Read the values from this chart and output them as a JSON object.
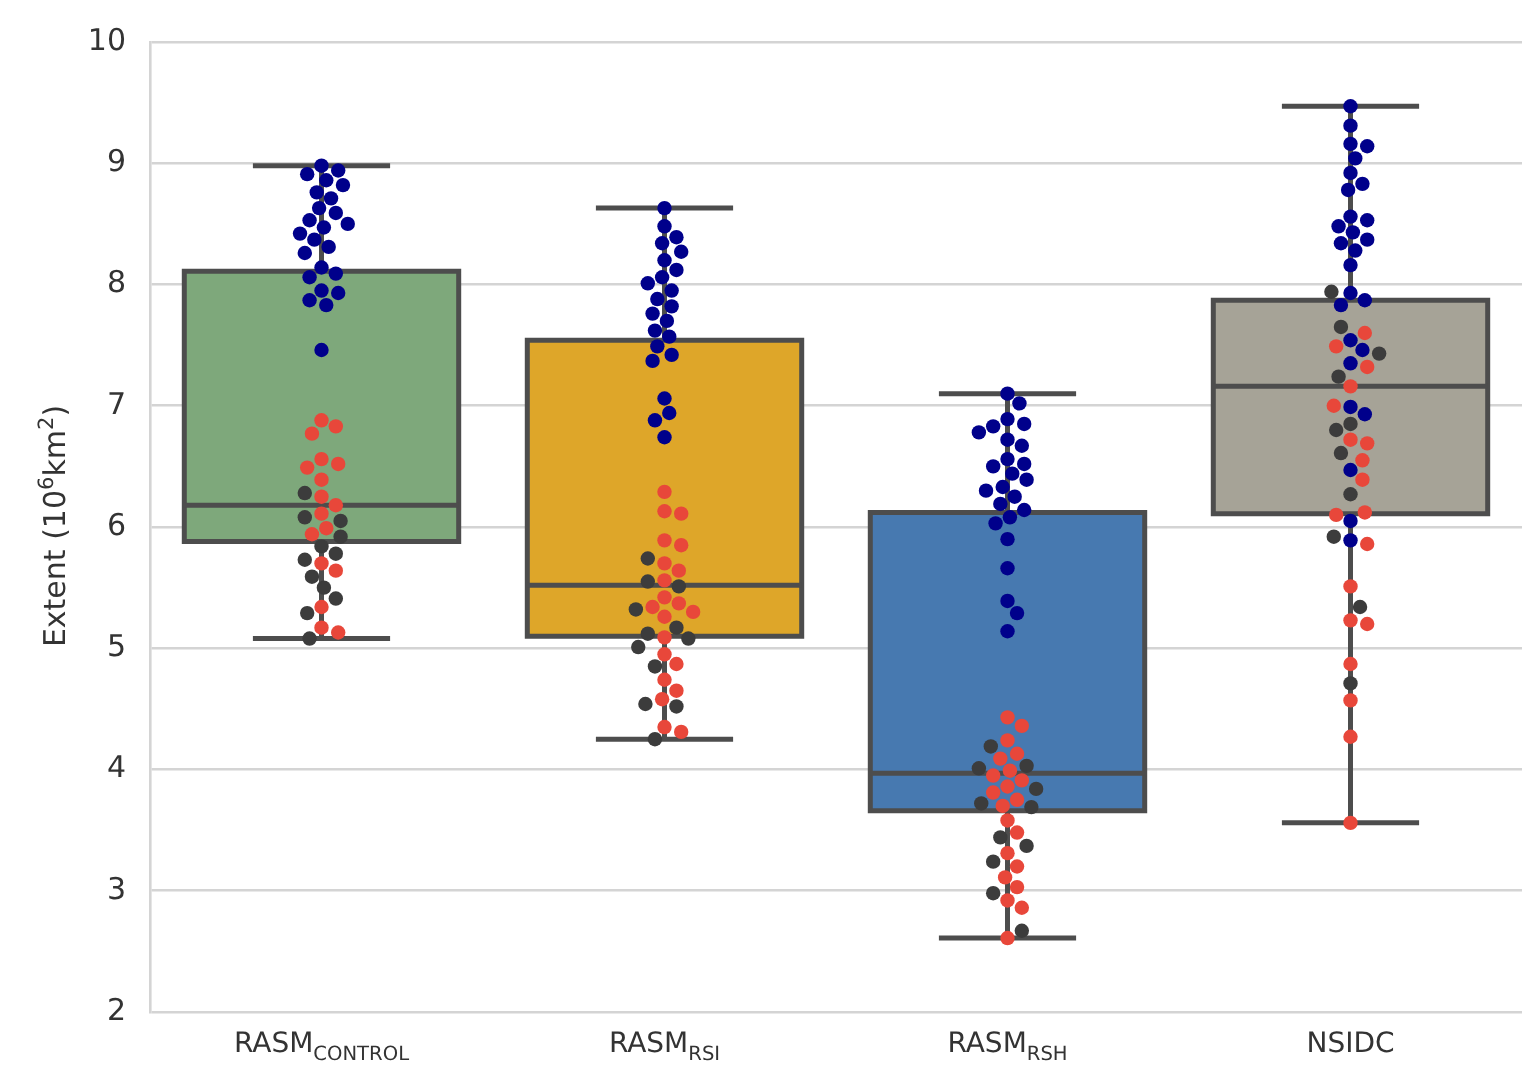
{
  "chart_data": {
    "type": "box",
    "ylabel": "Extent (10$^{6}$km$^{2}$)",
    "categories": [
      "RASM$_{CONTROL}$",
      "RASM$_{RSI}$",
      "RASM$_{RSH}$",
      "NSIDC"
    ],
    "colors": [
      "#7ea87b",
      "#dea629",
      "#4779b0",
      "#a6a397"
    ],
    "boxes": [
      {
        "low": 5.08,
        "q1": 5.88,
        "median": 6.18,
        "q3": 8.11,
        "high": 8.98
      },
      {
        "low": 4.25,
        "q1": 5.1,
        "median": 5.52,
        "q3": 7.54,
        "high": 8.63
      },
      {
        "low": 2.61,
        "q1": 3.66,
        "median": 3.97,
        "q3": 6.12,
        "high": 7.1
      },
      {
        "low": 3.56,
        "q1": 6.11,
        "median": 7.16,
        "q3": 7.87,
        "high": 9.47
      }
    ],
    "series": [
      {
        "type": "scatter",
        "color": "#00008b",
        "x": [
          "RASM$_{CONTROL}$",
          "RASM$_{CONTROL}$",
          "RASM$_{CONTROL}$",
          "RASM$_{CONTROL}$",
          "RASM$_{CONTROL}$",
          "RASM$_{CONTROL}$",
          "RASM$_{CONTROL}$",
          "RASM$_{CONTROL}$",
          "RASM$_{CONTROL}$",
          "RASM$_{CONTROL}$",
          "RASM$_{CONTROL}$",
          "RASM$_{CONTROL}$",
          "RASM$_{CONTROL}$",
          "RASM$_{CONTROL}$",
          "RASM$_{CONTROL}$",
          "RASM$_{CONTROL}$",
          "RASM$_{CONTROL}$",
          "RASM$_{CONTROL}$",
          "RASM$_{CONTROL}$",
          "RASM$_{CONTROL}$",
          "RASM$_{CONTROL}$",
          "RASM$_{CONTROL}$",
          "RASM$_{CONTROL}$",
          "RASM$_{CONTROL}$",
          "RASM$_{RSI}$",
          "RASM$_{RSI}$",
          "RASM$_{RSI}$",
          "RASM$_{RSI}$",
          "RASM$_{RSI}$",
          "RASM$_{RSI}$",
          "RASM$_{RSI}$",
          "RASM$_{RSI}$",
          "RASM$_{RSI}$",
          "RASM$_{RSI}$",
          "RASM$_{RSI}$",
          "RASM$_{RSI}$",
          "RASM$_{RSI}$",
          "RASM$_{RSI}$",
          "RASM$_{RSI}$",
          "RASM$_{RSI}$",
          "RASM$_{RSI}$",
          "RASM$_{RSI}$",
          "RASM$_{RSI}$",
          "RASM$_{RSI}$",
          "RASM$_{RSI}$",
          "RASM$_{RSI}$",
          "RASM$_{RSI}$",
          "RASM$_{RSH}$",
          "RASM$_{RSH}$",
          "RASM$_{RSH}$",
          "RASM$_{RSH}$",
          "RASM$_{RSH}$",
          "RASM$_{RSH}$",
          "RASM$_{RSH}$",
          "RASM$_{RSH}$",
          "RASM$_{RSH}$",
          "RASM$_{RSH}$",
          "RASM$_{RSH}$",
          "RASM$_{RSH}$",
          "RASM$_{RSH}$",
          "RASM$_{RSH}$",
          "RASM$_{RSH}$",
          "RASM$_{RSH}$",
          "RASM$_{RSH}$",
          "RASM$_{RSH}$",
          "RASM$_{RSH}$",
          "RASM$_{RSH}$",
          "RASM$_{RSH}$",
          "RASM$_{RSH}$",
          "RASM$_{RSH}$",
          "RASM$_{RSH}$",
          "RASM$_{RSH}$",
          "NSIDC",
          "NSIDC",
          "NSIDC",
          "NSIDC",
          "NSIDC",
          "NSIDC",
          "NSIDC",
          "NSIDC",
          "NSIDC",
          "NSIDC",
          "NSIDC",
          "NSIDC",
          "NSIDC",
          "NSIDC",
          "NSIDC",
          "NSIDC",
          "NSIDC",
          "NSIDC",
          "NSIDC",
          "NSIDC",
          "NSIDC",
          "NSIDC",
          "NSIDC",
          "NSIDC",
          "NSIDC",
          "NSIDC",
          "NSIDC"
        ],
        "values": [
          8.98,
          8.94,
          8.91,
          8.86,
          8.82,
          8.76,
          8.71,
          8.63,
          8.59,
          8.53,
          8.5,
          8.47,
          8.42,
          8.37,
          8.31,
          8.26,
          8.14,
          8.09,
          8.06,
          7.95,
          7.93,
          7.87,
          7.83,
          7.46,
          8.63,
          8.48,
          8.39,
          8.34,
          8.27,
          8.2,
          8.12,
          8.06,
          8.01,
          7.95,
          7.88,
          7.82,
          7.76,
          7.7,
          7.62,
          7.57,
          7.49,
          7.42,
          7.37,
          7.06,
          6.94,
          6.88,
          6.74,
          7.1,
          7.02,
          6.89,
          6.85,
          6.83,
          6.78,
          6.72,
          6.67,
          6.56,
          6.52,
          6.5,
          6.44,
          6.39,
          6.33,
          6.3,
          6.25,
          6.19,
          6.14,
          6.08,
          6.03,
          5.9,
          5.66,
          5.39,
          5.29,
          5.14,
          9.47,
          9.31,
          9.16,
          9.14,
          9.04,
          8.92,
          8.83,
          8.78,
          8.56,
          8.53,
          8.48,
          8.43,
          8.37,
          8.34,
          8.28,
          8.16,
          7.93,
          7.87,
          7.83,
          7.54,
          7.46,
          7.35,
          6.99,
          6.93,
          6.47,
          6.05,
          5.89
        ]
      },
      {
        "type": "scatter",
        "color": "#e8473a",
        "x": [
          "RASM$_{CONTROL}$",
          "RASM$_{CONTROL}$",
          "RASM$_{CONTROL}$",
          "RASM$_{CONTROL}$",
          "RASM$_{CONTROL}$",
          "RASM$_{CONTROL}$",
          "RASM$_{CONTROL}$",
          "RASM$_{CONTROL}$",
          "RASM$_{CONTROL}$",
          "RASM$_{CONTROL}$",
          "RASM$_{CONTROL}$",
          "RASM$_{CONTROL}$",
          "RASM$_{CONTROL}$",
          "RASM$_{CONTROL}$",
          "RASM$_{CONTROL}$",
          "RASM$_{CONTROL}$",
          "RASM$_{CONTROL}$",
          "RASM$_{RSI}$",
          "RASM$_{RSI}$",
          "RASM$_{RSI}$",
          "RASM$_{RSI}$",
          "RASM$_{RSI}$",
          "RASM$_{RSI}$",
          "RASM$_{RSI}$",
          "RASM$_{RSI}$",
          "RASM$_{RSI}$",
          "RASM$_{RSI}$",
          "RASM$_{RSI}$",
          "RASM$_{RSI}$",
          "RASM$_{RSI}$",
          "RASM$_{RSI}$",
          "RASM$_{RSI}$",
          "RASM$_{RSI}$",
          "RASM$_{RSI}$",
          "RASM$_{RSI}$",
          "RASM$_{RSI}$",
          "RASM$_{RSI}$",
          "RASM$_{RSI}$",
          "RASM$_{RSH}$",
          "RASM$_{RSH}$",
          "RASM$_{RSH}$",
          "RASM$_{RSH}$",
          "RASM$_{RSH}$",
          "RASM$_{RSH}$",
          "RASM$_{RSH}$",
          "RASM$_{RSH}$",
          "RASM$_{RSH}$",
          "RASM$_{RSH}$",
          "RASM$_{RSH}$",
          "RASM$_{RSH}$",
          "RASM$_{RSH}$",
          "RASM$_{RSH}$",
          "RASM$_{RSH}$",
          "RASM$_{RSH}$",
          "RASM$_{RSH}$",
          "RASM$_{RSH}$",
          "RASM$_{RSH}$",
          "RASM$_{RSH}$",
          "RASM$_{RSH}$",
          "NSIDC",
          "NSIDC",
          "NSIDC",
          "NSIDC",
          "NSIDC",
          "NSIDC",
          "NSIDC",
          "NSIDC",
          "NSIDC",
          "NSIDC",
          "NSIDC",
          "NSIDC",
          "NSIDC",
          "NSIDC",
          "NSIDC",
          "NSIDC",
          "NSIDC",
          "NSIDC",
          "NSIDC"
        ],
        "values": [
          6.88,
          6.83,
          6.77,
          6.56,
          6.52,
          6.49,
          6.39,
          6.25,
          6.18,
          6.11,
          5.99,
          5.94,
          5.7,
          5.64,
          5.34,
          5.17,
          5.13,
          6.29,
          6.13,
          6.11,
          5.89,
          5.85,
          5.7,
          5.64,
          5.56,
          5.42,
          5.37,
          5.34,
          5.3,
          5.26,
          5.09,
          4.95,
          4.87,
          4.74,
          4.65,
          4.58,
          4.35,
          4.31,
          4.43,
          4.36,
          4.24,
          4.13,
          4.09,
          3.99,
          3.95,
          3.91,
          3.86,
          3.81,
          3.75,
          3.7,
          3.58,
          3.48,
          3.31,
          3.2,
          3.11,
          3.03,
          2.92,
          2.86,
          2.61,
          7.6,
          7.49,
          7.32,
          7.16,
          7.0,
          6.72,
          6.69,
          6.55,
          6.39,
          6.12,
          6.1,
          5.86,
          5.51,
          5.23,
          5.2,
          4.87,
          4.57,
          4.27,
          3.56
        ]
      },
      {
        "type": "scatter",
        "color": "#3c3c3c",
        "x": [
          "RASM$_{CONTROL}$",
          "RASM$_{CONTROL}$",
          "RASM$_{CONTROL}$",
          "RASM$_{CONTROL}$",
          "RASM$_{CONTROL}$",
          "RASM$_{CONTROL}$",
          "RASM$_{CONTROL}$",
          "RASM$_{CONTROL}$",
          "RASM$_{CONTROL}$",
          "RASM$_{CONTROL}$",
          "RASM$_{CONTROL}$",
          "RASM$_{CONTROL}$",
          "RASM$_{RSI}$",
          "RASM$_{RSI}$",
          "RASM$_{RSI}$",
          "RASM$_{RSI}$",
          "RASM$_{RSI}$",
          "RASM$_{RSI}$",
          "RASM$_{RSI}$",
          "RASM$_{RSI}$",
          "RASM$_{RSI}$",
          "RASM$_{RSI}$",
          "RASM$_{RSI}$",
          "RASM$_{RSI}$",
          "RASM$_{RSH}$",
          "RASM$_{RSH}$",
          "RASM$_{RSH}$",
          "RASM$_{RSH}$",
          "RASM$_{RSH}$",
          "RASM$_{RSH}$",
          "RASM$_{RSH}$",
          "RASM$_{RSH}$",
          "RASM$_{RSH}$",
          "RASM$_{RSH}$",
          "RASM$_{RSH}$",
          "NSIDC",
          "NSIDC",
          "NSIDC",
          "NSIDC",
          "NSIDC",
          "NSIDC",
          "NSIDC",
          "NSIDC",
          "NSIDC",
          "NSIDC",
          "NSIDC"
        ],
        "values": [
          6.28,
          6.08,
          6.05,
          5.92,
          5.84,
          5.78,
          5.73,
          5.59,
          5.5,
          5.41,
          5.29,
          5.08,
          5.74,
          5.55,
          5.51,
          5.32,
          5.17,
          5.12,
          5.08,
          5.01,
          4.85,
          4.54,
          4.52,
          4.25,
          4.19,
          4.03,
          4.01,
          3.84,
          3.72,
          3.69,
          3.44,
          3.37,
          3.24,
          2.98,
          2.67,
          7.94,
          7.65,
          7.43,
          7.24,
          6.85,
          6.8,
          6.61,
          6.27,
          5.92,
          5.34,
          4.71
        ]
      }
    ],
    "ylim": [
      2,
      10
    ],
    "yticks": [
      2,
      3,
      4,
      5,
      6,
      7,
      8,
      9,
      10
    ],
    "grid": "y",
    "marker": "circle"
  }
}
